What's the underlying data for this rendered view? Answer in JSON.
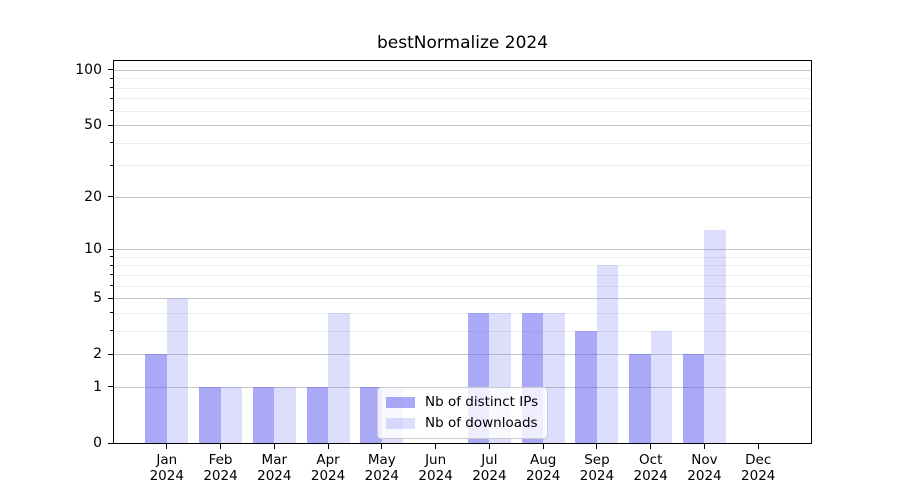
{
  "chart_data": {
    "type": "bar",
    "title": "bestNormalize 2024",
    "categories": [
      "Jan 2024",
      "Feb 2024",
      "Mar 2024",
      "Apr 2024",
      "May 2024",
      "Jun 2024",
      "Jul 2024",
      "Aug 2024",
      "Sep 2024",
      "Oct 2024",
      "Nov 2024",
      "Dec 2024"
    ],
    "series": [
      {
        "name": "Nb of distinct IPs",
        "color": "rgba(98,98,240,0.55)",
        "values": [
          2,
          1,
          1,
          1,
          1,
          0,
          4,
          4,
          3,
          2,
          2,
          0
        ]
      },
      {
        "name": "Nb of downloads",
        "color": "rgba(98,98,240,0.22)",
        "values": [
          5,
          1,
          1,
          4,
          1,
          0,
          4,
          4,
          8,
          3,
          13,
          0
        ]
      }
    ],
    "yscale": "log1p",
    "ylim": [
      0,
      113
    ],
    "yticks": [
      0,
      1,
      2,
      5,
      10,
      20,
      50,
      100
    ],
    "ytick_labels": [
      "0",
      "1",
      "2",
      "5",
      "10",
      "20",
      "50",
      "100"
    ],
    "minor_gridlines": [
      3,
      4,
      6,
      7,
      8,
      9,
      30,
      40,
      60,
      70,
      80,
      90
    ],
    "grid": true,
    "legend_position": "lower-center",
    "colors": {
      "grid_major": "#c6c6c6",
      "grid_minor": "#ececec",
      "spine": "#000000",
      "text": "#000000",
      "legend_border": "#cccccc",
      "legend_bg": "rgba(255,255,255,0.8)"
    }
  }
}
